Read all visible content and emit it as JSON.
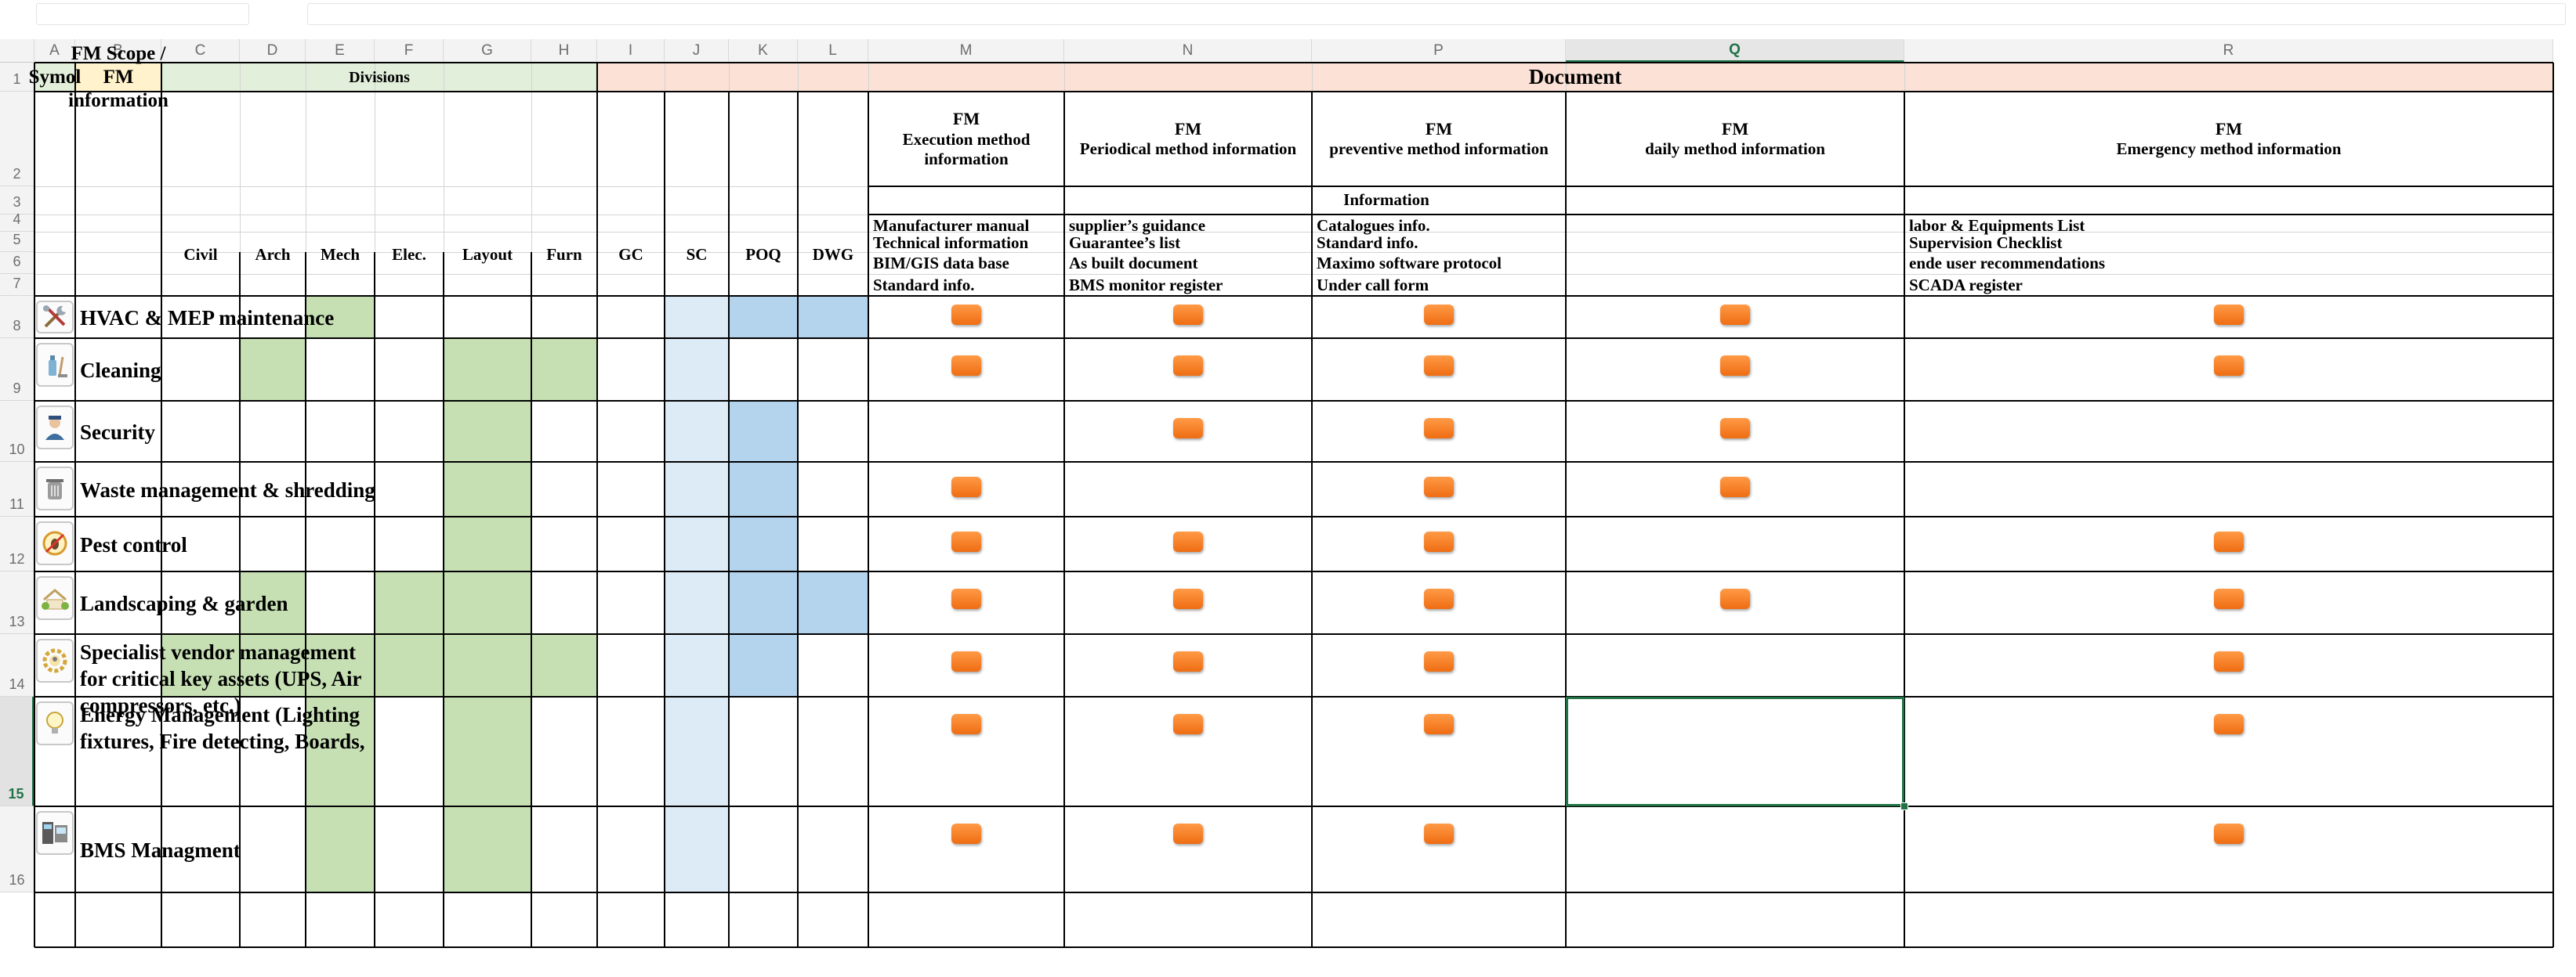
{
  "columns": [
    "A",
    "B",
    "C",
    "D",
    "E",
    "F",
    "G",
    "H",
    "I",
    "J",
    "K",
    "L",
    "M",
    "N",
    "P",
    "Q",
    "R"
  ],
  "selected_column": "Q",
  "row_numbers": [
    "1",
    "2",
    "3",
    "4",
    "5",
    "6",
    "7",
    "8",
    "9",
    "10",
    "11",
    "12",
    "13",
    "14",
    "15",
    "16"
  ],
  "selected_row": "15",
  "header": {
    "symbol": "Symol",
    "scope": "FM Scope / FM information",
    "divisions": "Divisions",
    "document": "Document",
    "information": "Information",
    "division_cols": [
      "Civil",
      "Arch",
      "Mech",
      "Elec.",
      "Layout",
      "Furn",
      "GC",
      "SC",
      "POQ",
      "DWG"
    ],
    "doc_cols": [
      {
        "title": "FM",
        "sub": "Execution method information"
      },
      {
        "title": "FM",
        "sub": "Periodical method information"
      },
      {
        "title": "FM",
        "sub": "preventive method information"
      },
      {
        "title": "FM",
        "sub": "daily method information"
      },
      {
        "title": "FM",
        "sub": "Emergency method information"
      }
    ],
    "info_lists": {
      "M": [
        "Manufacturer manual",
        "Technical information",
        "BIM/GIS data base",
        "Standard info."
      ],
      "N": [
        "supplier’s guidance",
        "Guarantee’s list",
        "As built document",
        "BMS monitor register"
      ],
      "P": [
        "Catalogues info.",
        "Standard info.",
        "Maximo software protocol",
        "Under call form"
      ],
      "R": [
        "labor & Equipments List",
        "Supervision Checklist",
        "ende user recommendations",
        "SCADA register"
      ]
    }
  },
  "rows": [
    {
      "row": "8",
      "icon": "tools-icon",
      "scope": [
        "HVAC & MEP maintenance"
      ]
    },
    {
      "row": "9",
      "icon": "cleaning-icon",
      "scope": [
        "Cleaning"
      ]
    },
    {
      "row": "10",
      "icon": "guard-icon",
      "scope": [
        "Security"
      ]
    },
    {
      "row": "11",
      "icon": "bin-icon",
      "scope": [
        "Waste management & shredding"
      ]
    },
    {
      "row": "12",
      "icon": "pest-icon",
      "scope": [
        "Pest control"
      ]
    },
    {
      "row": "13",
      "icon": "garden-icon",
      "scope": [
        "Landscaping & garden"
      ]
    },
    {
      "row": "14",
      "icon": "vendor-gear-icon",
      "scope": [
        "Specialist vendor management",
        "for critical key assets (UPS, Air",
        "compressors, etc.)"
      ]
    },
    {
      "row": "15",
      "icon": "lightbulb-icon",
      "scope": [
        "Energy Management (Lighting",
        "fixtures, Fire detecting, Boards,"
      ]
    },
    {
      "row": "16",
      "icon": "bms-panel-icon",
      "scope": [
        "BMS Managment"
      ]
    }
  ],
  "division_fills": {
    "8": [
      "",
      "",
      "green",
      "",
      "",
      "",
      "",
      "blue-l",
      "blue-m",
      "blue-m"
    ],
    "9": [
      "",
      "green",
      "",
      "",
      "green",
      "green",
      "",
      "blue-l",
      "",
      ""
    ],
    "10": [
      "",
      "",
      "",
      "",
      "green",
      "",
      "",
      "blue-l",
      "blue-m",
      ""
    ],
    "11": [
      "",
      "",
      "",
      "",
      "green",
      "",
      "",
      "blue-l",
      "blue-m",
      ""
    ],
    "12": [
      "",
      "",
      "",
      "",
      "green",
      "",
      "",
      "blue-l",
      "blue-m",
      ""
    ],
    "13": [
      "",
      "green",
      "",
      "green",
      "green",
      "",
      "",
      "blue-l",
      "blue-m",
      "blue-m"
    ],
    "14": [
      "green",
      "green",
      "green",
      "green",
      "green",
      "green",
      "",
      "blue-l",
      "blue-m",
      ""
    ],
    "15": [
      "",
      "",
      "green",
      "",
      "green",
      "",
      "",
      "blue-l",
      "",
      ""
    ],
    "16": [
      "",
      "",
      "green",
      "",
      "green",
      "",
      "",
      "blue-l",
      "",
      ""
    ]
  },
  "document_markers": {
    "8": [
      true,
      true,
      true,
      true,
      true
    ],
    "9": [
      true,
      true,
      true,
      true,
      true
    ],
    "10": [
      false,
      true,
      true,
      true,
      false
    ],
    "11": [
      true,
      false,
      true,
      true,
      false
    ],
    "12": [
      true,
      true,
      true,
      false,
      true
    ],
    "13": [
      true,
      true,
      true,
      true,
      true
    ],
    "14": [
      true,
      true,
      true,
      false,
      true
    ],
    "15": [
      true,
      true,
      true,
      false,
      true
    ],
    "16": [
      true,
      true,
      true,
      false,
      true
    ]
  },
  "colors": {
    "division_green": "#c6e0b4",
    "light_blue": "#ddebf7",
    "mid_blue": "#b4d3ed",
    "document_peach": "#fbe1d6",
    "header_yellow": "#fff2cc",
    "marker_orange": "#f47a20",
    "selection_green": "#217346"
  }
}
